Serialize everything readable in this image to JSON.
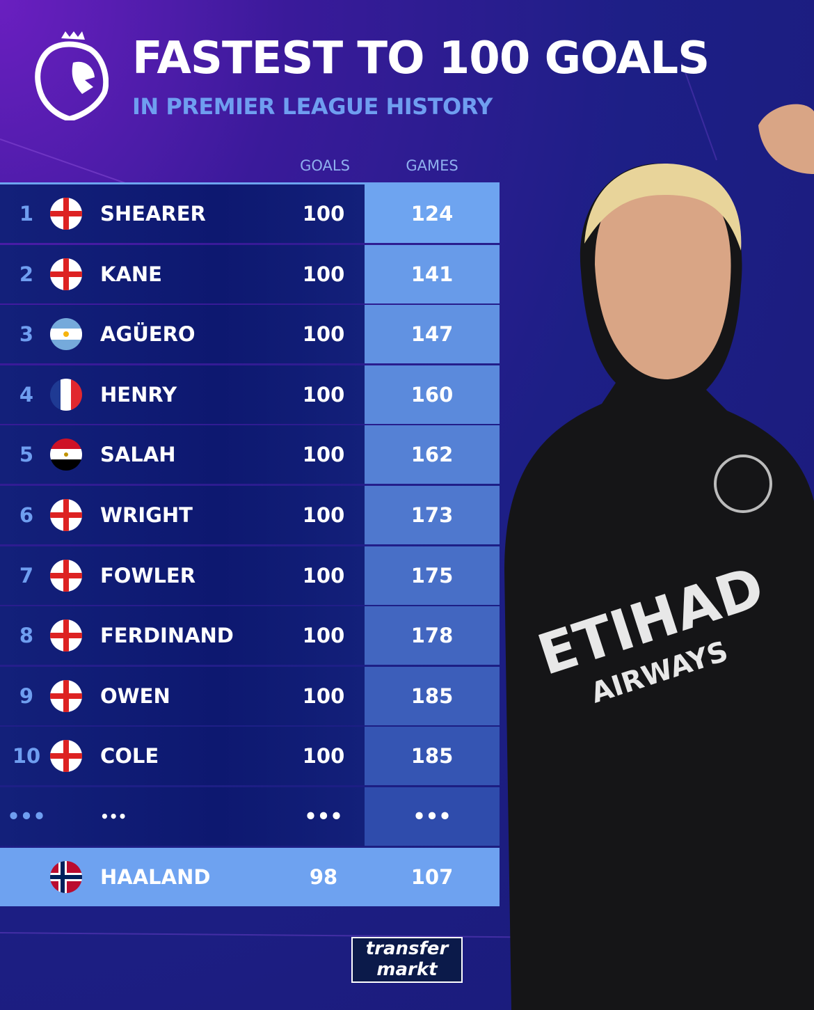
{
  "header": {
    "title": "FASTEST TO 100 GOALS",
    "subtitle": "IN PREMIER LEAGUE HISTORY",
    "logo": "premier-league-lion-logo"
  },
  "columns": {
    "goals": "GOALS",
    "games": "GAMES"
  },
  "rows": [
    {
      "rank": "1",
      "flag": "england",
      "name": "SHEARER",
      "goals": "100",
      "games": "124"
    },
    {
      "rank": "2",
      "flag": "england",
      "name": "KANE",
      "goals": "100",
      "games": "141"
    },
    {
      "rank": "3",
      "flag": "argentina",
      "name": "AGÜERO",
      "goals": "100",
      "games": "147"
    },
    {
      "rank": "4",
      "flag": "france",
      "name": "HENRY",
      "goals": "100",
      "games": "160"
    },
    {
      "rank": "5",
      "flag": "egypt",
      "name": "SALAH",
      "goals": "100",
      "games": "162"
    },
    {
      "rank": "6",
      "flag": "england",
      "name": "WRIGHT",
      "goals": "100",
      "games": "173"
    },
    {
      "rank": "7",
      "flag": "england",
      "name": "FOWLER",
      "goals": "100",
      "games": "175"
    },
    {
      "rank": "8",
      "flag": "england",
      "name": "FERDINAND",
      "goals": "100",
      "games": "178"
    },
    {
      "rank": "9",
      "flag": "england",
      "name": "OWEN",
      "goals": "100",
      "games": "185"
    },
    {
      "rank": "10",
      "flag": "england",
      "name": "COLE",
      "goals": "100",
      "games": "185"
    },
    {
      "rank": "•••",
      "flag": "",
      "name": "•••",
      "goals": "•••",
      "games": "•••"
    }
  ],
  "highlight": {
    "flag": "norway",
    "name": "HAALAND",
    "goals": "98",
    "games": "107"
  },
  "jersey": {
    "sponsor_line1": "ETIHAD",
    "sponsor_line2": "AIRWAYS"
  },
  "footer": {
    "brand_line1": "transfer",
    "brand_line2": "markt"
  },
  "colors": {
    "accent": "#6ea2f0",
    "games_top": "#6ea4f0",
    "games_bottom": "#2f4cac",
    "row_bg": "#0d1870"
  }
}
